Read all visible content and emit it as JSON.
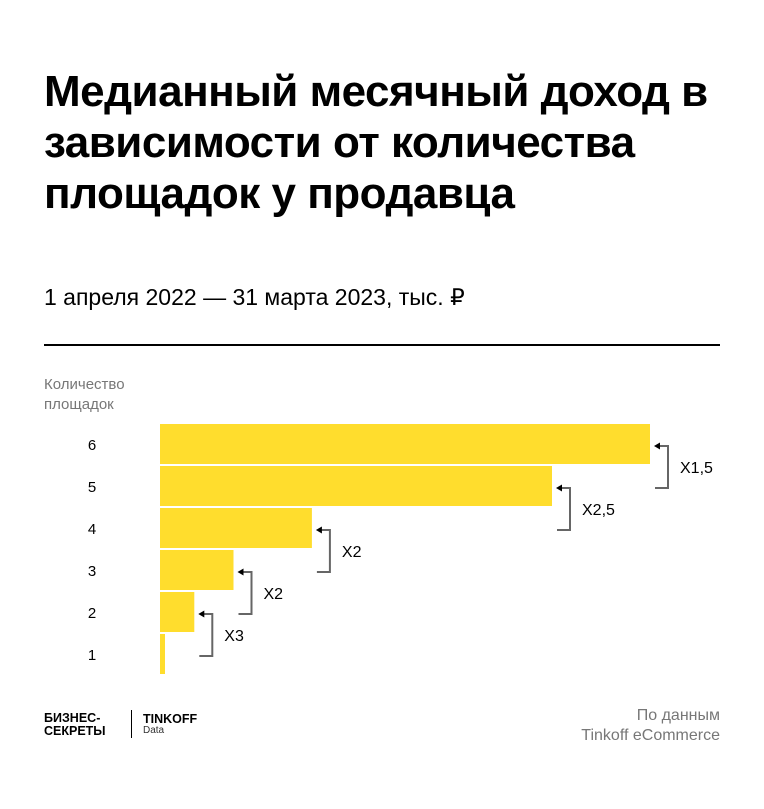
{
  "title": "Медианный месячный доход в зависимости от количества площадок у продавца",
  "subtitle": "1 апреля 2022 — 31 марта 2023, тыс. ₽",
  "chart_data": {
    "type": "bar",
    "orientation": "horizontal",
    "ylabel_line1": "Количество",
    "ylabel_line2": "площадок",
    "categories": [
      "6",
      "5",
      "4",
      "3",
      "2",
      "1"
    ],
    "values": [
      100,
      80,
      31,
      15,
      7,
      1
    ],
    "value_note": "relative estimate, max = 100; no axis printed",
    "annotations": [
      "X1,5",
      "X2,5",
      "X2",
      "X2",
      "X3"
    ],
    "bar_color": "#FFDD2D",
    "grid": false
  },
  "footer": {
    "logo1_line1": "БИЗНЕС-",
    "logo1_line2": "СЕКРЕТЫ",
    "logo2_title": "TINKOFF",
    "logo2_sub": "Data",
    "source_line1": "По данным",
    "source_line2": "Tinkoff eCommerce"
  }
}
